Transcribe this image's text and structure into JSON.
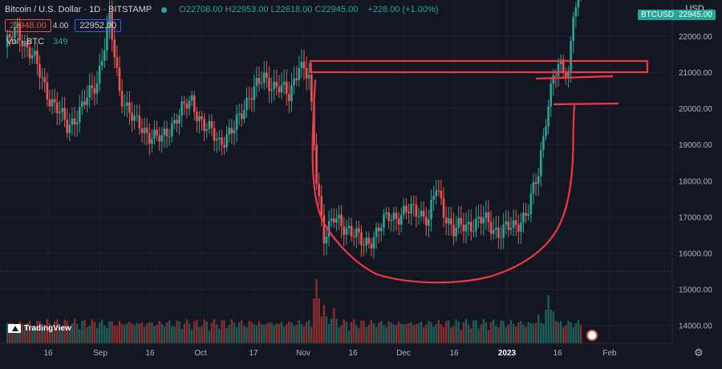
{
  "header": {
    "title": "Bitcoin / U.S. Dollar · 1D · BITSTAMP",
    "ohlc": [
      {
        "k": "O",
        "v": "22708.00"
      },
      {
        "k": "H",
        "v": "22953.00"
      },
      {
        "k": "L",
        "v": "22618.00"
      },
      {
        "k": "C",
        "v": "22945.00"
      }
    ],
    "change": "+228.00 (+1.00%)",
    "sell_price": "22948.00",
    "spread": "4.00",
    "buy_price": "22952.00",
    "volume_label": "Vol · BTC",
    "volume_value": "349",
    "currency": "USD",
    "symbol_tag": "BTCUSD",
    "last_price_tag": "22945.00",
    "logo_text": "TradingView",
    "settings_icon": "gear-icon"
  },
  "colors": {
    "background": "#131722",
    "up": "#26a69a",
    "down": "#ef5350",
    "drawing": "#f23645",
    "text": "#d1d4dc"
  },
  "chart_data": {
    "type": "candlestick",
    "title": "Bitcoin / U.S. Dollar · 1D · BITSTAMP",
    "y_axis": {
      "ticks": [
        "14000.00",
        "15000.00",
        "16000.00",
        "17000.00",
        "18000.00",
        "19000.00",
        "20000.00",
        "21000.00",
        "22000.00"
      ],
      "range": [
        13500,
        23000
      ]
    },
    "x_axis": {
      "ticks": [
        "16",
        "Sep",
        "16",
        "Oct",
        "17",
        "Nov",
        "16",
        "Dec",
        "16",
        "2023",
        "16",
        "Feb"
      ]
    },
    "price_path": [
      [
        0,
        21700
      ],
      [
        5,
        22200
      ],
      [
        12,
        21300
      ],
      [
        18,
        20300
      ],
      [
        25,
        19500
      ],
      [
        31,
        20000
      ],
      [
        37,
        20800
      ],
      [
        42,
        22400
      ],
      [
        46,
        20500
      ],
      [
        52,
        19600
      ],
      [
        58,
        19300
      ],
      [
        63,
        19100
      ],
      [
        69,
        19800
      ],
      [
        75,
        20200
      ],
      [
        80,
        19500
      ],
      [
        86,
        19100
      ],
      [
        92,
        19400
      ],
      [
        98,
        20400
      ],
      [
        104,
        20800
      ],
      [
        110,
        20600
      ],
      [
        114,
        20300
      ],
      [
        118,
        21300
      ],
      [
        122,
        20800
      ],
      [
        125,
        18100
      ],
      [
        128,
        16500
      ],
      [
        132,
        16900
      ],
      [
        138,
        16700
      ],
      [
        144,
        16200
      ],
      [
        148,
        16500
      ],
      [
        154,
        17000
      ],
      [
        160,
        17100
      ],
      [
        166,
        17200
      ],
      [
        170,
        16900
      ],
      [
        173,
        17800
      ],
      [
        176,
        17200
      ],
      [
        180,
        16600
      ],
      [
        186,
        16800
      ],
      [
        192,
        16900
      ],
      [
        198,
        16600
      ],
      [
        204,
        16700
      ],
      [
        210,
        17200
      ],
      [
        214,
        18200
      ],
      [
        217,
        19800
      ],
      [
        220,
        20900
      ],
      [
        223,
        21100
      ],
      [
        226,
        21000
      ],
      [
        228,
        22800
      ],
      [
        231,
        23000
      ]
    ],
    "volume": {
      "label": "Vol · BTC",
      "last": "349",
      "spikes": [
        [
          125,
          1.0
        ],
        [
          128,
          0.6
        ],
        [
          132,
          0.55
        ],
        [
          214,
          0.45
        ],
        [
          218,
          0.75
        ],
        [
          220,
          0.5
        ]
      ]
    },
    "annotations": [
      {
        "type": "rectangle",
        "price_top": 21650,
        "price_bottom": 21300,
        "day_start": 118,
        "day_end": 250
      },
      {
        "type": "trendline",
        "price": 21200,
        "day_start": 216,
        "day_end": 237
      },
      {
        "type": "trendline",
        "price": 20400,
        "day_start": 221,
        "day_end": 238
      },
      {
        "type": "freehand",
        "shape": "cup",
        "bottom_price": 15500
      }
    ]
  }
}
